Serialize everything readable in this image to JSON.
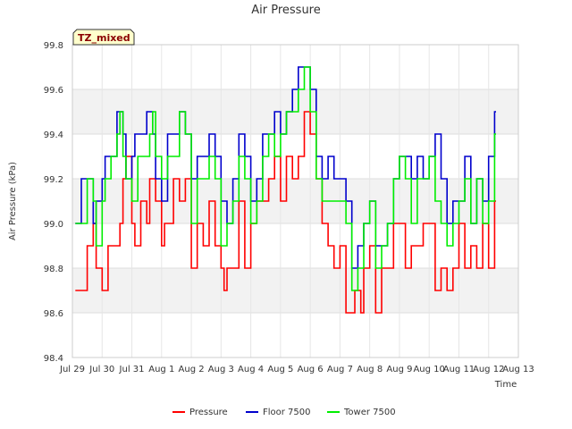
{
  "chart_data": {
    "type": "line",
    "title": "Air Pressure",
    "xlabel": "Time",
    "ylabel": "Air Pressure (kPa)",
    "badge": "TZ_mixed",
    "ylim": [
      98.4,
      99.8
    ],
    "yticks": [
      "98.4",
      "98.6",
      "98.8",
      "99.0",
      "99.2",
      "99.4",
      "99.6",
      "99.8"
    ],
    "xlim": [
      0,
      15
    ],
    "xticks": [
      "Jul 29",
      "Jul 30",
      "Jul 31",
      "Aug 1",
      "Aug 2",
      "Aug 3",
      "Aug 4",
      "Aug 5",
      "Aug 6",
      "Aug 7",
      "Aug 8",
      "Aug 9",
      "Aug 10",
      "Aug 11",
      "Aug 12",
      "Aug 13"
    ],
    "grid": true,
    "legend_position": "bottom",
    "series": [
      {
        "name": "Pressure",
        "color": "#ff0000",
        "x": [
          0.1,
          0.3,
          0.5,
          0.7,
          0.8,
          1.0,
          1.2,
          1.4,
          1.6,
          1.7,
          1.8,
          2.0,
          2.1,
          2.3,
          2.5,
          2.6,
          2.7,
          2.8,
          3.0,
          3.1,
          3.2,
          3.4,
          3.6,
          3.8,
          4.0,
          4.2,
          4.4,
          4.6,
          4.8,
          5.0,
          5.1,
          5.2,
          5.4,
          5.6,
          5.8,
          6.0,
          6.2,
          6.4,
          6.6,
          6.8,
          7.0,
          7.2,
          7.4,
          7.6,
          7.8,
          8.0,
          8.2,
          8.4,
          8.6,
          8.8,
          9.0,
          9.2,
          9.4,
          9.5,
          9.7,
          9.8,
          10.0,
          10.2,
          10.4,
          10.6,
          10.8,
          11.0,
          11.2,
          11.4,
          11.6,
          11.8,
          12.0,
          12.2,
          12.4,
          12.6,
          12.8,
          13.0,
          13.2,
          13.4,
          13.6,
          13.8,
          14.0,
          14.2
        ],
        "values": [
          98.7,
          98.7,
          98.9,
          99.0,
          98.8,
          98.7,
          98.9,
          98.9,
          99.0,
          99.2,
          99.3,
          99.0,
          98.9,
          99.1,
          99.0,
          99.2,
          99.2,
          99.1,
          98.9,
          99.0,
          99.0,
          99.2,
          99.1,
          99.2,
          98.8,
          99.0,
          98.9,
          99.1,
          98.9,
          98.8,
          98.7,
          98.8,
          98.8,
          99.1,
          98.8,
          99.0,
          99.1,
          99.1,
          99.2,
          99.3,
          99.1,
          99.3,
          99.2,
          99.3,
          99.5,
          99.4,
          99.2,
          99.0,
          98.9,
          98.8,
          98.9,
          98.6,
          98.6,
          98.7,
          98.6,
          98.8,
          98.9,
          98.6,
          98.8,
          98.8,
          99.0,
          99.0,
          98.8,
          98.9,
          98.9,
          99.0,
          99.0,
          98.7,
          98.8,
          98.7,
          98.8,
          99.0,
          98.8,
          98.9,
          98.8,
          99.0,
          98.8,
          99.1
        ]
      },
      {
        "name": "Floor 7500",
        "color": "#0000cc",
        "x": [
          0.1,
          0.3,
          0.5,
          0.7,
          0.8,
          1.0,
          1.1,
          1.3,
          1.5,
          1.6,
          1.7,
          1.8,
          2.0,
          2.1,
          2.3,
          2.5,
          2.7,
          2.8,
          3.0,
          3.2,
          3.4,
          3.6,
          3.8,
          4.0,
          4.2,
          4.4,
          4.6,
          4.8,
          5.0,
          5.2,
          5.4,
          5.6,
          5.8,
          6.0,
          6.2,
          6.4,
          6.6,
          6.8,
          7.0,
          7.2,
          7.4,
          7.6,
          7.8,
          8.0,
          8.2,
          8.4,
          8.6,
          8.8,
          9.0,
          9.2,
          9.4,
          9.6,
          9.8,
          10.0,
          10.2,
          10.4,
          10.6,
          10.8,
          11.0,
          11.2,
          11.4,
          11.6,
          11.8,
          12.0,
          12.2,
          12.4,
          12.6,
          12.8,
          13.0,
          13.2,
          13.4,
          13.6,
          13.8,
          14.0,
          14.2
        ],
        "values": [
          99.0,
          99.2,
          99.2,
          99.0,
          99.1,
          99.2,
          99.3,
          99.3,
          99.5,
          99.5,
          99.4,
          99.2,
          99.3,
          99.4,
          99.4,
          99.5,
          99.4,
          99.2,
          99.1,
          99.4,
          99.4,
          99.5,
          99.4,
          99.2,
          99.3,
          99.3,
          99.4,
          99.3,
          99.1,
          99.0,
          99.2,
          99.4,
          99.3,
          99.1,
          99.2,
          99.4,
          99.4,
          99.5,
          99.4,
          99.5,
          99.6,
          99.7,
          99.7,
          99.6,
          99.3,
          99.2,
          99.3,
          99.2,
          99.2,
          99.1,
          98.8,
          98.9,
          99.0,
          99.1,
          98.9,
          98.9,
          99.0,
          99.2,
          99.3,
          99.3,
          99.2,
          99.3,
          99.2,
          99.3,
          99.4,
          99.2,
          99.0,
          99.1,
          99.1,
          99.3,
          99.0,
          99.2,
          99.1,
          99.3,
          99.5
        ]
      },
      {
        "name": "Tower 7500",
        "color": "#00ee00",
        "x": [
          0.1,
          0.3,
          0.5,
          0.7,
          0.8,
          1.0,
          1.1,
          1.3,
          1.5,
          1.6,
          1.7,
          1.8,
          2.0,
          2.2,
          2.4,
          2.6,
          2.7,
          2.8,
          3.0,
          3.2,
          3.4,
          3.6,
          3.8,
          4.0,
          4.2,
          4.4,
          4.6,
          4.8,
          5.0,
          5.2,
          5.4,
          5.6,
          5.8,
          6.0,
          6.2,
          6.4,
          6.6,
          6.8,
          7.0,
          7.2,
          7.4,
          7.6,
          7.8,
          8.0,
          8.2,
          8.4,
          8.6,
          8.8,
          9.0,
          9.2,
          9.4,
          9.6,
          9.8,
          10.0,
          10.2,
          10.4,
          10.6,
          10.8,
          11.0,
          11.2,
          11.4,
          11.6,
          11.8,
          12.0,
          12.2,
          12.4,
          12.6,
          12.8,
          13.0,
          13.2,
          13.4,
          13.6,
          13.8,
          14.0,
          14.2
        ],
        "values": [
          99.0,
          99.0,
          99.2,
          99.1,
          98.9,
          99.1,
          99.2,
          99.3,
          99.4,
          99.5,
          99.3,
          99.2,
          99.1,
          99.3,
          99.3,
          99.4,
          99.5,
          99.3,
          99.2,
          99.3,
          99.3,
          99.5,
          99.4,
          99.0,
          99.2,
          99.2,
          99.3,
          99.2,
          98.9,
          99.0,
          99.1,
          99.3,
          99.2,
          99.0,
          99.1,
          99.3,
          99.4,
          99.3,
          99.4,
          99.5,
          99.5,
          99.6,
          99.7,
          99.5,
          99.2,
          99.1,
          99.1,
          99.1,
          99.1,
          99.0,
          98.7,
          98.8,
          99.0,
          99.1,
          98.8,
          98.9,
          99.0,
          99.2,
          99.3,
          99.2,
          99.0,
          99.2,
          99.2,
          99.3,
          99.1,
          99.0,
          98.9,
          99.0,
          99.1,
          99.2,
          99.0,
          99.2,
          99.0,
          99.1,
          99.4
        ]
      }
    ]
  }
}
